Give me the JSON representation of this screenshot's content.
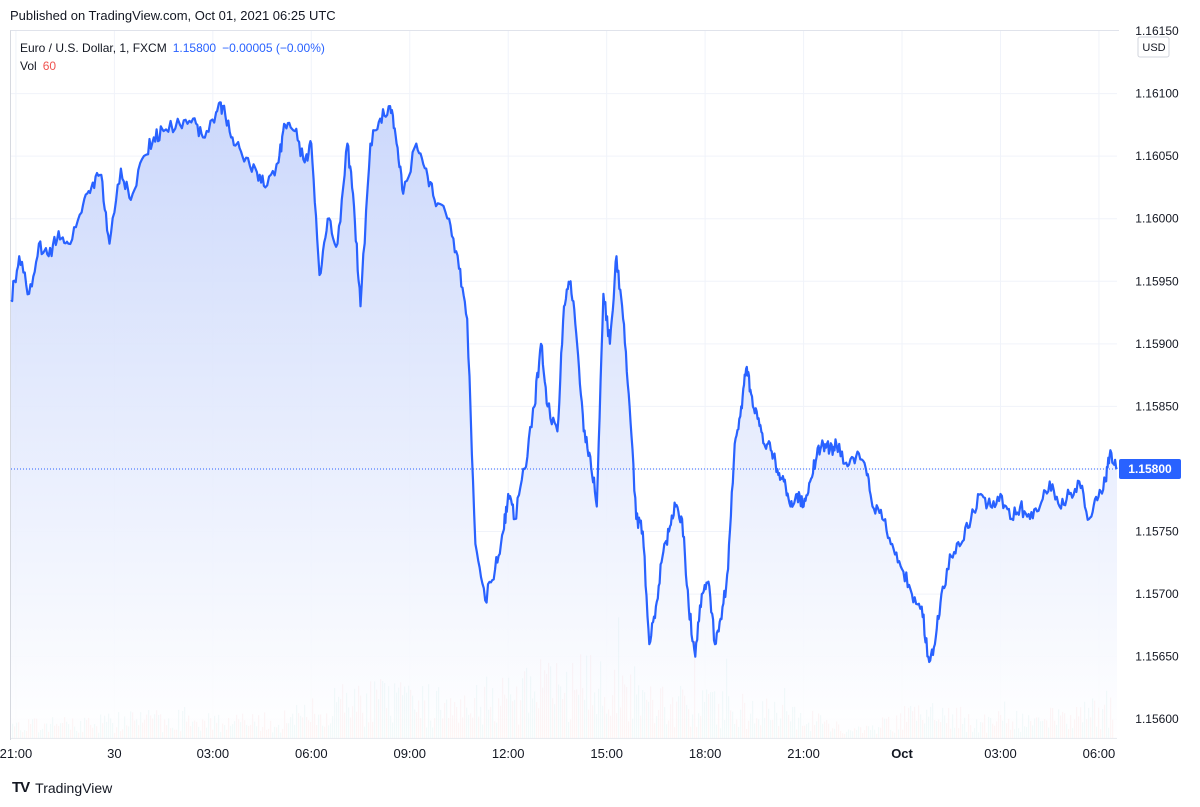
{
  "header": {
    "published": "Published on TradingView.com, Oct 01, 2021 06:25 UTC"
  },
  "legend": {
    "symbol": "Euro / U.S. Dollar, 1, FXCM",
    "last": "1.15800",
    "change": "−0.00005 (−0.00%)",
    "vol_label": "Vol",
    "vol_value": "60"
  },
  "axis": {
    "currency": "USD",
    "last_label": "1.15800"
  },
  "footer": {
    "brand": "TradingView",
    "logo": "TV"
  },
  "colors": {
    "line": "#2962ff",
    "vol_up": "#26a69a",
    "vol_down": "#ef5350",
    "grid": "#f0f3fa",
    "fill_top": "#c9d6fb",
    "fill_bottom": "#ffffff"
  },
  "chart_data": {
    "type": "area",
    "ylim": [
      1.15585,
      1.1615
    ],
    "y_ticks": [
      1.156,
      1.1565,
      1.157,
      1.1575,
      1.158,
      1.1585,
      1.159,
      1.1595,
      1.16,
      1.1605,
      1.161,
      1.1615
    ],
    "y_tick_labels": [
      "1.15600",
      "1.15650",
      "1.15700",
      "1.15750",
      "1.15800",
      "1.15850",
      "1.15900",
      "1.15950",
      "1.16000",
      "1.16050",
      "1.16100",
      "1.16150"
    ],
    "x_range_hours": [
      -3.15,
      30.55
    ],
    "x_ticks": [
      {
        "label": "21:00",
        "h": -3
      },
      {
        "label": "30",
        "h": 0
      },
      {
        "label": "03:00",
        "h": 3
      },
      {
        "label": "06:00",
        "h": 6
      },
      {
        "label": "09:00",
        "h": 9
      },
      {
        "label": "12:00",
        "h": 12
      },
      {
        "label": "15:00",
        "h": 15
      },
      {
        "label": "18:00",
        "h": 18
      },
      {
        "label": "21:00",
        "h": 21
      },
      {
        "label": "Oct",
        "h": 24,
        "bold": true
      },
      {
        "label": "03:00",
        "h": 27
      },
      {
        "label": "06:00",
        "h": 30
      }
    ],
    "series": [
      {
        "points": [
          [
            -3.15,
            1.15935
          ],
          [
            -2.9,
            1.1597
          ],
          [
            -2.6,
            1.1594
          ],
          [
            -2.3,
            1.1598
          ],
          [
            -2.0,
            1.1597
          ],
          [
            -1.7,
            1.1599
          ],
          [
            -1.4,
            1.1598
          ],
          [
            -1.0,
            1.16005
          ],
          [
            -0.7,
            1.16025
          ],
          [
            -0.4,
            1.16035
          ],
          [
            -0.15,
            1.1598
          ],
          [
            0.2,
            1.1604
          ],
          [
            0.5,
            1.16015
          ],
          [
            0.9,
            1.1605
          ],
          [
            1.2,
            1.16065
          ],
          [
            1.5,
            1.1607
          ],
          [
            2.0,
            1.16075
          ],
          [
            2.4,
            1.1608
          ],
          [
            2.7,
            1.16065
          ],
          [
            3.1,
            1.16085
          ],
          [
            3.3,
            1.1609
          ],
          [
            3.6,
            1.16065
          ],
          [
            3.9,
            1.1605
          ],
          [
            4.3,
            1.1604
          ],
          [
            4.6,
            1.16025
          ],
          [
            5.0,
            1.16045
          ],
          [
            5.2,
            1.16075
          ],
          [
            5.5,
            1.1607
          ],
          [
            5.8,
            1.16045
          ],
          [
            6.0,
            1.1606
          ],
          [
            6.25,
            1.15955
          ],
          [
            6.5,
            1.16
          ],
          [
            6.8,
            1.1598
          ],
          [
            7.1,
            1.1606
          ],
          [
            7.3,
            1.1601
          ],
          [
            7.5,
            1.1593
          ],
          [
            7.8,
            1.1606
          ],
          [
            8.1,
            1.1608
          ],
          [
            8.4,
            1.1609
          ],
          [
            8.6,
            1.1606
          ],
          [
            8.8,
            1.1602
          ],
          [
            9.2,
            1.1606
          ],
          [
            9.5,
            1.1604
          ],
          [
            9.8,
            1.1601
          ],
          [
            10.2,
            1.16
          ],
          [
            10.5,
            1.1596
          ],
          [
            10.75,
            1.1592
          ],
          [
            11.0,
            1.1574
          ],
          [
            11.3,
            1.15695
          ],
          [
            11.6,
            1.1572
          ],
          [
            11.85,
            1.1575
          ],
          [
            12.0,
            1.1578
          ],
          [
            12.2,
            1.1576
          ],
          [
            12.5,
            1.158
          ],
          [
            12.8,
            1.1585
          ],
          [
            13.0,
            1.159
          ],
          [
            13.2,
            1.1585
          ],
          [
            13.5,
            1.1583
          ],
          [
            13.7,
            1.1593
          ],
          [
            13.9,
            1.1595
          ],
          [
            14.1,
            1.159
          ],
          [
            14.3,
            1.1583
          ],
          [
            14.5,
            1.1581
          ],
          [
            14.7,
            1.1577
          ],
          [
            14.9,
            1.1594
          ],
          [
            15.1,
            1.159
          ],
          [
            15.3,
            1.1597
          ],
          [
            15.5,
            1.1592
          ],
          [
            15.7,
            1.1585
          ],
          [
            15.9,
            1.1576
          ],
          [
            16.1,
            1.1575
          ],
          [
            16.3,
            1.1566
          ],
          [
            16.5,
            1.1569
          ],
          [
            16.7,
            1.1573
          ],
          [
            16.9,
            1.1575
          ],
          [
            17.1,
            1.1577
          ],
          [
            17.3,
            1.1576
          ],
          [
            17.5,
            1.1569
          ],
          [
            17.7,
            1.1565
          ],
          [
            17.9,
            1.157
          ],
          [
            18.1,
            1.1571
          ],
          [
            18.3,
            1.1566
          ],
          [
            18.5,
            1.1568
          ],
          [
            18.7,
            1.1572
          ],
          [
            18.9,
            1.1582
          ],
          [
            19.1,
            1.1585
          ],
          [
            19.25,
            1.1588
          ],
          [
            19.4,
            1.1586
          ],
          [
            19.6,
            1.1584
          ],
          [
            19.8,
            1.1582
          ],
          [
            20.0,
            1.15815
          ],
          [
            20.2,
            1.158
          ],
          [
            20.4,
            1.1579
          ],
          [
            20.6,
            1.1577
          ],
          [
            20.8,
            1.1578
          ],
          [
            21.0,
            1.1577
          ],
          [
            21.2,
            1.1579
          ],
          [
            21.4,
            1.1581
          ],
          [
            21.6,
            1.1582
          ],
          [
            21.8,
            1.15815
          ],
          [
            22.0,
            1.1582
          ],
          [
            22.3,
            1.15805
          ],
          [
            22.6,
            1.1581
          ],
          [
            22.9,
            1.158
          ],
          [
            23.1,
            1.1577
          ],
          [
            23.4,
            1.1576
          ],
          [
            23.7,
            1.1574
          ],
          [
            24.0,
            1.1572
          ],
          [
            24.3,
            1.157
          ],
          [
            24.6,
            1.1569
          ],
          [
            24.8,
            1.1565
          ],
          [
            25.0,
            1.1566
          ],
          [
            25.2,
            1.157
          ],
          [
            25.5,
            1.1573
          ],
          [
            25.8,
            1.1574
          ],
          [
            26.1,
            1.1576
          ],
          [
            26.4,
            1.1578
          ],
          [
            26.7,
            1.1577
          ],
          [
            27.0,
            1.1578
          ],
          [
            27.3,
            1.1576
          ],
          [
            27.6,
            1.1577
          ],
          [
            27.9,
            1.1576
          ],
          [
            28.2,
            1.1577
          ],
          [
            28.5,
            1.1579
          ],
          [
            28.8,
            1.1577
          ],
          [
            29.1,
            1.1578
          ],
          [
            29.4,
            1.1579
          ],
          [
            29.7,
            1.1576
          ],
          [
            29.95,
            1.15775
          ],
          [
            30.2,
            1.1579
          ],
          [
            30.35,
            1.15815
          ],
          [
            30.55,
            1.158
          ]
        ]
      }
    ],
    "volume_profile": [
      [
        -3.0,
        14
      ],
      [
        -2.0,
        16
      ],
      [
        -1.0,
        18
      ],
      [
        0.0,
        20
      ],
      [
        1.0,
        22
      ],
      [
        2.0,
        24
      ],
      [
        3.0,
        22
      ],
      [
        4.0,
        18
      ],
      [
        5.0,
        20
      ],
      [
        6.0,
        30
      ],
      [
        7.0,
        42
      ],
      [
        8.0,
        46
      ],
      [
        9.0,
        40
      ],
      [
        10.0,
        42
      ],
      [
        11.0,
        52
      ],
      [
        12.0,
        48
      ],
      [
        13.0,
        60
      ],
      [
        14.0,
        62
      ],
      [
        15.0,
        66
      ],
      [
        16.0,
        52
      ],
      [
        17.0,
        44
      ],
      [
        18.0,
        38
      ],
      [
        19.0,
        34
      ],
      [
        20.0,
        30
      ],
      [
        21.0,
        24
      ],
      [
        22.0,
        14
      ],
      [
        23.0,
        10
      ],
      [
        24.0,
        24
      ],
      [
        25.0,
        30
      ],
      [
        26.0,
        22
      ],
      [
        27.0,
        20
      ],
      [
        28.0,
        22
      ],
      [
        29.0,
        24
      ],
      [
        30.0,
        32
      ],
      [
        30.55,
        40
      ]
    ]
  }
}
